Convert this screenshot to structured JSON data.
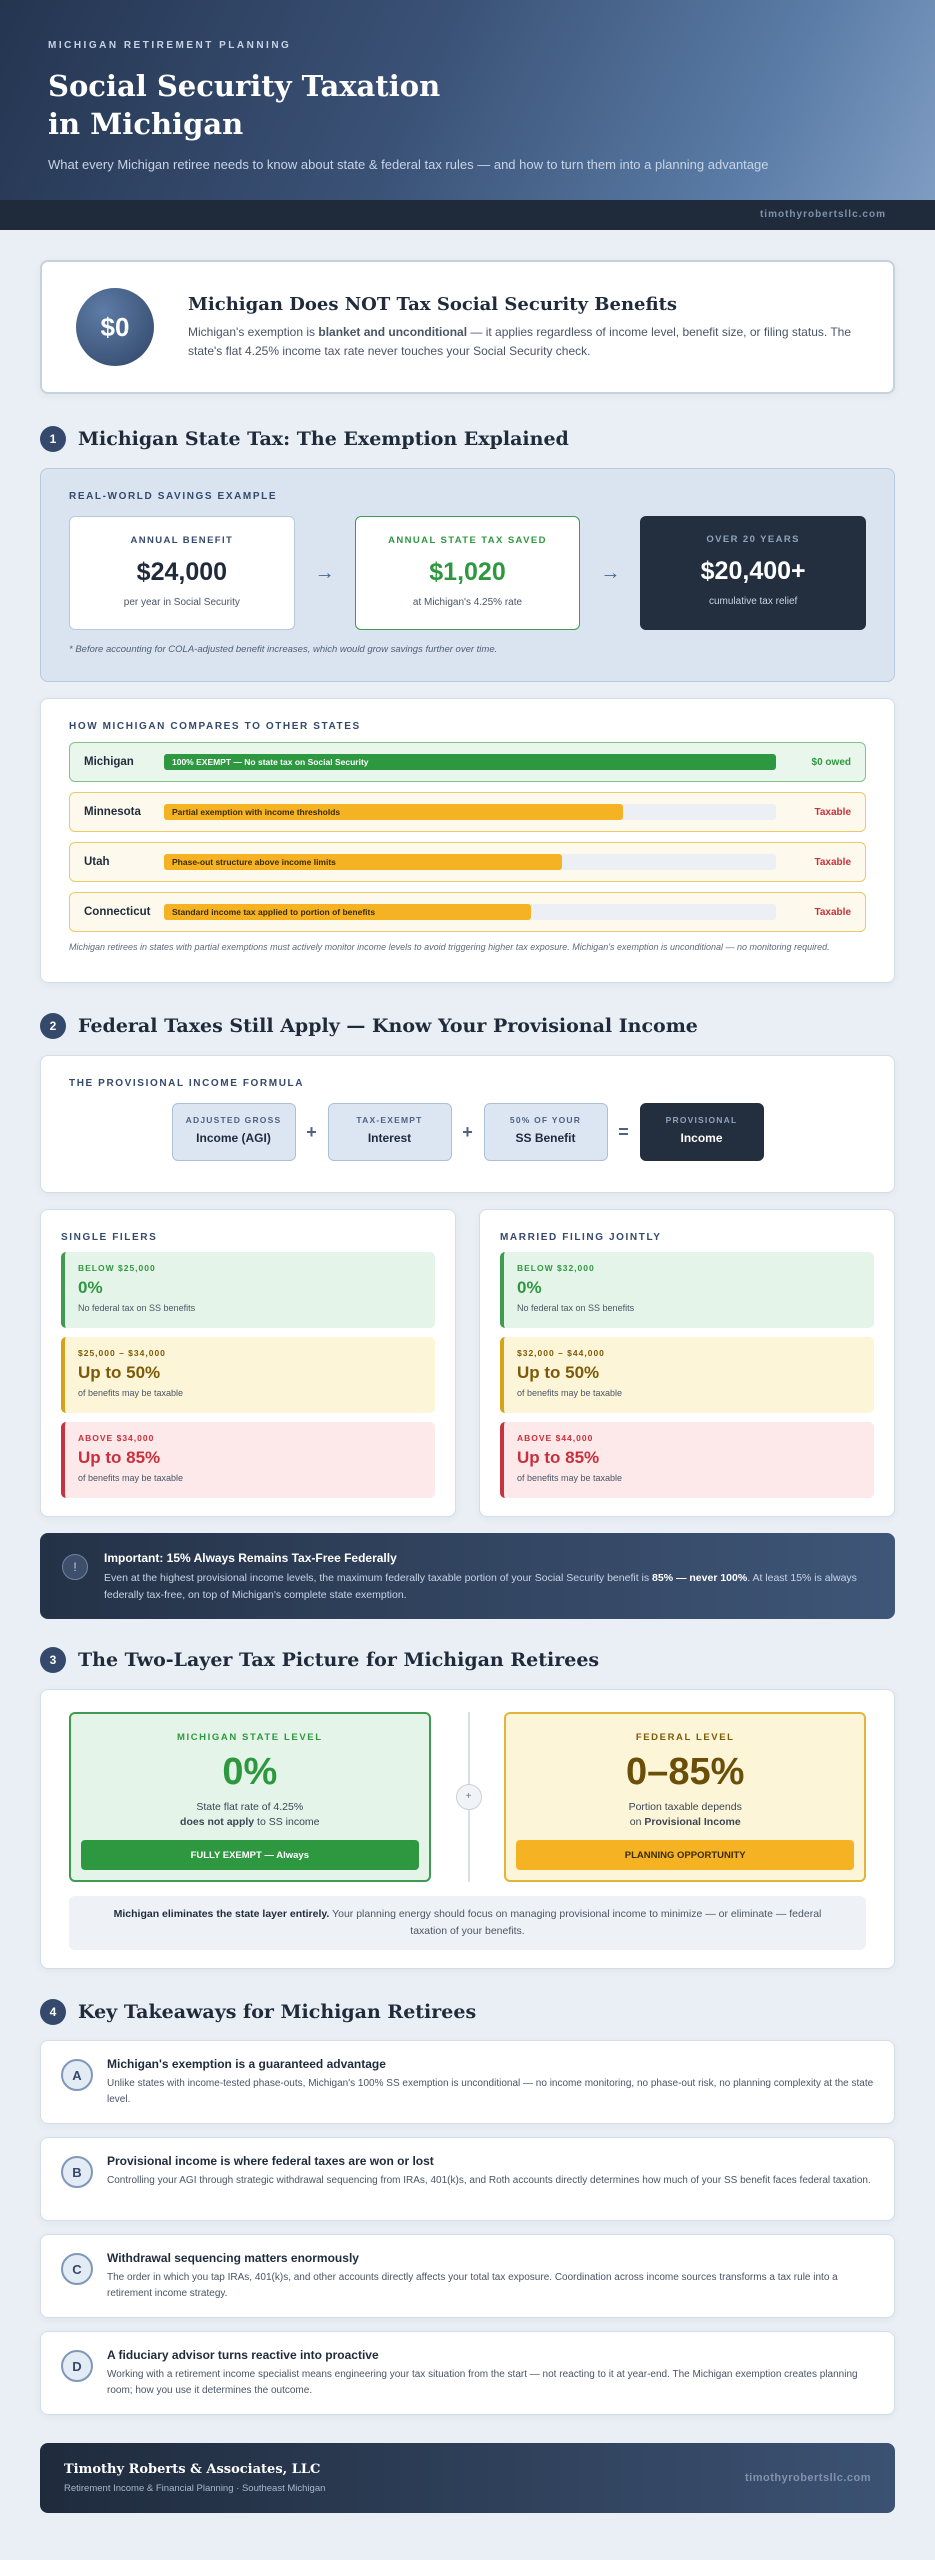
{
  "header": {
    "kicker": "MICHIGAN RETIREMENT PLANNING",
    "title_line1": "Social Security Taxation",
    "title_line2": "in Michigan",
    "subtitle": "What every Michigan retiree needs to know about state & federal tax rules — and how to turn them into a planning advantage",
    "site": "timothyrobertsllc.com"
  },
  "callout": {
    "badge": "$0",
    "title": "Michigan Does NOT Tax Social Security Benefits",
    "body_pre": "Michigan's exemption is ",
    "body_bold": "blanket and unconditional",
    "body_post": " — it applies regardless of income level, benefit size, or filing status. The state's flat 4.25% income tax rate never touches your Social Security check."
  },
  "section1": {
    "num": "1",
    "title": "Michigan State Tax: The Exemption Explained",
    "savings_label": "REAL-WORLD SAVINGS EXAMPLE",
    "boxes": [
      {
        "key": "ANNUAL BENEFIT",
        "value": "$24,000",
        "sub": "per year in Social Security"
      },
      {
        "key": "ANNUAL STATE TAX SAVED",
        "value": "$1,020",
        "sub": "at Michigan's 4.25% rate"
      },
      {
        "key": "OVER 20 YEARS",
        "value": "$20,400+",
        "sub": "cumulative tax relief"
      }
    ],
    "arrow": "→",
    "savings_note": "* Before accounting for COLA-adjusted benefit increases, which would grow savings further over time.",
    "compare_label": "HOW MICHIGAN COMPARES TO OTHER STATES",
    "compare": [
      {
        "state": "Michigan",
        "bar": "100% EXEMPT — No state tax on Social Security",
        "fill": 1.0,
        "result": "$0 owed"
      },
      {
        "state": "Minnesota",
        "bar": "Partial exemption with income thresholds",
        "fill": 0.75,
        "result": "Taxable"
      },
      {
        "state": "Utah",
        "bar": "Phase-out structure above income limits",
        "fill": 0.65,
        "result": "Taxable"
      },
      {
        "state": "Connecticut",
        "bar": "Standard income tax applied to portion of benefits",
        "fill": 0.6,
        "result": "Taxable"
      }
    ],
    "compare_note": "Michigan retirees in states with partial exemptions must actively monitor income levels to avoid triggering higher tax exposure. Michigan's exemption is unconditional — no monitoring required."
  },
  "section2": {
    "num": "2",
    "title": "Federal Taxes Still Apply — Know Your Provisional Income",
    "formula_label": "THE PROVISIONAL INCOME FORMULA",
    "formula": [
      {
        "a": "ADJUSTED GROSS",
        "b": "Income (AGI)"
      },
      {
        "a": "TAX-EXEMPT",
        "b": "Interest"
      },
      {
        "a": "50% OF YOUR",
        "b": "SS Benefit"
      },
      {
        "a": "PROVISIONAL",
        "b": "Income"
      }
    ],
    "ops": [
      "+",
      "+",
      "="
    ],
    "single": {
      "label": "SINGLE FILERS",
      "brackets": [
        {
          "range": "BELOW $25,000",
          "pct": "0%",
          "desc": "No federal tax on SS benefits"
        },
        {
          "range": "$25,000 – $34,000",
          "pct": "Up to 50%",
          "desc": "of benefits may be taxable"
        },
        {
          "range": "ABOVE $34,000",
          "pct": "Up to 85%",
          "desc": "of benefits may be taxable"
        }
      ]
    },
    "married": {
      "label": "MARRIED FILING JOINTLY",
      "brackets": [
        {
          "range": "BELOW $32,000",
          "pct": "0%",
          "desc": "No federal tax on SS benefits"
        },
        {
          "range": "$32,000 – $44,000",
          "pct": "Up to 50%",
          "desc": "of benefits may be taxable"
        },
        {
          "range": "ABOVE $44,000",
          "pct": "Up to 85%",
          "desc": "of benefits may be taxable"
        }
      ]
    },
    "important": {
      "icon": "!",
      "title": "Important: 15% Always Remains Tax-Free Federally",
      "body_pre": "Even at the highest provisional income levels, the maximum federally taxable portion of your Social Security benefit is ",
      "body_bold": "85% — never 100%",
      "body_post": ". At least 15% is always federally tax-free, on top of Michigan's complete state exemption."
    }
  },
  "section3": {
    "num": "3",
    "title": "The Two-Layer Tax Picture for Michigan Retirees",
    "state": {
      "key": "MICHIGAN STATE LEVEL",
      "value": "0%",
      "line1": "State flat rate of 4.25%",
      "line2_bold": "does not apply",
      "line2_post": " to SS income",
      "button": "FULLY EXEMPT — Always"
    },
    "federal": {
      "key": "FEDERAL LEVEL",
      "value": "0–85%",
      "line1": "Portion taxable depends",
      "line2_pre": "on ",
      "line2_bold": "Provisional Income",
      "button": "PLANNING OPPORTUNITY"
    },
    "mid": "+",
    "note_bold": "Michigan eliminates the state layer entirely.",
    "note_rest": " Your planning energy should focus on managing provisional income to minimize — or eliminate — federal taxation of your benefits."
  },
  "section4": {
    "num": "4",
    "title": "Key Takeaways for Michigan Retirees",
    "items": [
      {
        "letter": "A",
        "title": "Michigan's exemption is a guaranteed advantage",
        "body": "Unlike states with income-tested phase-outs, Michigan's 100% SS exemption is unconditional — no income monitoring, no phase-out risk, no planning complexity at the state level."
      },
      {
        "letter": "B",
        "title": "Provisional income is where federal taxes are won or lost",
        "body": "Controlling your AGI through strategic withdrawal sequencing from IRAs, 401(k)s, and Roth accounts directly determines how much of your SS benefit faces federal taxation."
      },
      {
        "letter": "C",
        "title": "Withdrawal sequencing matters enormously",
        "body": "The order in which you tap IRAs, 401(k)s, and other accounts directly affects your total tax exposure. Coordination across income sources transforms a tax rule into a retirement income strategy."
      },
      {
        "letter": "D",
        "title": "A fiduciary advisor turns reactive into proactive",
        "body": "Working with a retirement income specialist means engineering your tax situation from the start — not reacting to it at year-end. The Michigan exemption creates planning room; how you use it determines the outcome."
      }
    ]
  },
  "footer": {
    "name": "Timothy Roberts & Associates, LLC",
    "tagline": "Retirement Income & Financial Planning · Southeast Michigan",
    "url": "timothyrobertsllc.com"
  },
  "colors": {
    "navy": "#243550",
    "green": "#2e9840",
    "amber": "#f5b324",
    "red": "#c9303b"
  }
}
